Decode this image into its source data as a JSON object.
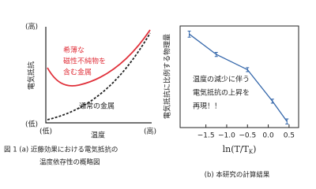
{
  "figure_a": {
    "y_label": "電気抵抗",
    "y_high": "(高)",
    "y_low": "(低)",
    "x_label": "温度",
    "x_low": "(低)",
    "x_high": "(高)",
    "red_label": [
      "希薄な",
      "磁性不純物を",
      "含む金属"
    ],
    "black_label": "通常の金属",
    "caption": [
      "図 1 (a) 近藤効果における電気抵抗の",
      "温度依存性の概略図"
    ]
  },
  "chart_data": {
    "type": "line",
    "ylabel": "電気抵抗に比例する物理量",
    "xlabel": {
      "main": "ln(T/T",
      "sub": "K",
      "end": ")"
    },
    "x": [
      -1.9,
      -1.25,
      -0.5,
      0.1,
      0.45
    ],
    "series": [
      {
        "color": "#3366aa",
        "values": [
          0.92,
          0.72,
          0.57,
          0.26,
          0.06
        ],
        "errors": [
          0.03,
          0.02,
          0.02,
          0.02,
          0.025
        ]
      }
    ],
    "xlim": [
      -2.12,
      0.73
    ],
    "ylim": [
      0,
      1
    ],
    "xticks": [
      {
        "value": -1.5,
        "label": "−1.5"
      },
      {
        "value": -1.0,
        "label": "−1.0"
      },
      {
        "value": -0.5,
        "label": "−0.5"
      },
      {
        "value": 0.0,
        "label": "0.0"
      },
      {
        "value": 0.5,
        "label": "0.5"
      }
    ],
    "annotation": [
      "温度の減少に伴う",
      "電気抵抗の上昇を",
      "再現！！"
    ],
    "caption": "(b) 本研究の計算結果"
  }
}
